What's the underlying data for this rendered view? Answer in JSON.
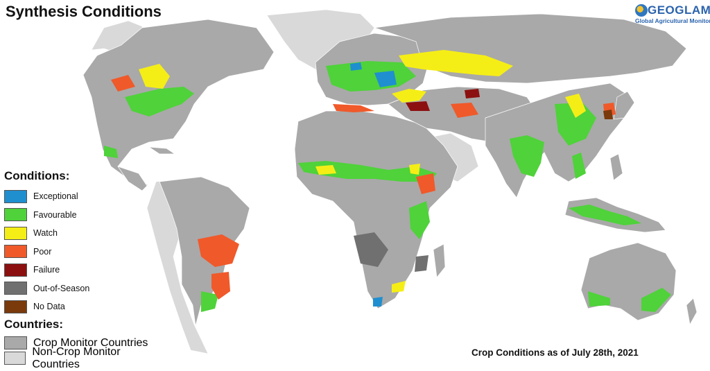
{
  "title": "Synthesis Conditions",
  "logo": {
    "name": "GEOGLAM",
    "subtitle": "Global Agricultural Monitoring"
  },
  "legend": {
    "conditions_heading": "Conditions:",
    "conditions": [
      {
        "label": "Exceptional",
        "color": "#1f8fd0"
      },
      {
        "label": "Favourable",
        "color": "#4fd23a"
      },
      {
        "label": "Watch",
        "color": "#f5ee16"
      },
      {
        "label": "Poor",
        "color": "#f0592a"
      },
      {
        "label": "Failure",
        "color": "#8c1010"
      },
      {
        "label": "Out-of-Season",
        "color": "#707070"
      },
      {
        "label": "No Data",
        "color": "#7a3a0c"
      }
    ],
    "countries_heading": "Countries:",
    "countries": [
      {
        "label": "Crop Monitor Countries",
        "color": "#a9a9a9"
      },
      {
        "label": "Non-Crop Monitor Countries",
        "color": "#d9d9d9"
      }
    ]
  },
  "footer": "Crop Conditions as of July 28th, 2021",
  "map_colors": {
    "crop_monitor": "#a9a9a9",
    "non_crop_monitor": "#d9d9d9",
    "borders": "#ffffff",
    "ocean": "#ffffff"
  }
}
